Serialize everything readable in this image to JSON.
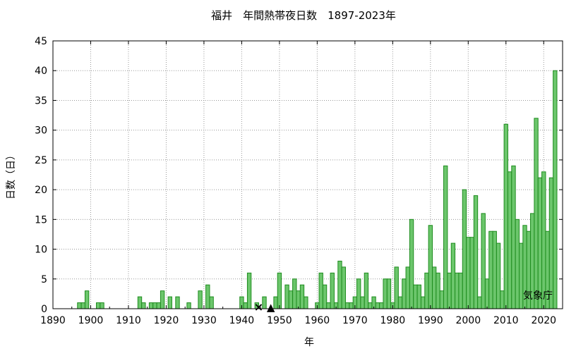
{
  "chart_data": {
    "type": "bar",
    "title": "福井　年間熱帯夜日数　1897-2023年",
    "xlabel": "年",
    "ylabel": "日数（日）",
    "credit": "気象庁",
    "xlim": [
      1890,
      2025
    ],
    "ylim": [
      0,
      45
    ],
    "xticks": [
      1890,
      1900,
      1910,
      1920,
      1930,
      1940,
      1950,
      1960,
      1970,
      1980,
      1990,
      2000,
      2010,
      2020
    ],
    "yticks": [
      0,
      5,
      10,
      15,
      20,
      25,
      30,
      35,
      40,
      45
    ],
    "grid": true,
    "bar_color": "#6cc66c",
    "bar_edge_color": "#1e8c1e",
    "years": [
      1897,
      1898,
      1899,
      1900,
      1901,
      1902,
      1903,
      1904,
      1905,
      1906,
      1907,
      1908,
      1909,
      1910,
      1911,
      1912,
      1913,
      1914,
      1915,
      1916,
      1917,
      1918,
      1919,
      1920,
      1921,
      1922,
      1923,
      1924,
      1925,
      1926,
      1927,
      1928,
      1929,
      1930,
      1931,
      1932,
      1933,
      1934,
      1935,
      1936,
      1937,
      1938,
      1939,
      1940,
      1941,
      1942,
      1943,
      1944,
      1945,
      1946,
      1947,
      1948,
      1949,
      1950,
      1951,
      1952,
      1953,
      1954,
      1955,
      1956,
      1957,
      1958,
      1959,
      1960,
      1961,
      1962,
      1963,
      1964,
      1965,
      1966,
      1967,
      1968,
      1969,
      1970,
      1971,
      1972,
      1973,
      1974,
      1975,
      1976,
      1977,
      1978,
      1979,
      1980,
      1981,
      1982,
      1983,
      1984,
      1985,
      1986,
      1987,
      1988,
      1989,
      1990,
      1991,
      1992,
      1993,
      1994,
      1995,
      1996,
      1997,
      1998,
      1999,
      2000,
      2001,
      2002,
      2003,
      2004,
      2005,
      2006,
      2007,
      2008,
      2009,
      2010,
      2011,
      2012,
      2013,
      2014,
      2015,
      2016,
      2017,
      2018,
      2019,
      2020,
      2021,
      2022,
      2023
    ],
    "values": [
      1,
      1,
      3,
      0,
      0,
      1,
      1,
      0,
      0,
      0,
      0,
      0,
      0,
      0,
      0,
      0,
      2,
      1,
      0,
      1,
      1,
      1,
      3,
      0,
      2,
      0,
      2,
      0,
      0,
      1,
      0,
      0,
      3,
      0,
      4,
      2,
      0,
      0,
      0,
      0,
      0,
      0,
      0,
      2,
      1,
      6,
      0,
      1,
      0,
      2,
      0,
      0,
      2,
      6,
      0,
      4,
      3,
      5,
      3,
      4,
      2,
      0,
      0,
      1,
      6,
      4,
      1,
      6,
      1,
      8,
      7,
      1,
      1,
      2,
      5,
      2,
      6,
      1,
      2,
      1,
      1,
      5,
      5,
      1,
      7,
      2,
      5,
      7,
      15,
      4,
      4,
      2,
      6,
      14,
      7,
      6,
      3,
      24,
      6,
      11,
      6,
      6,
      20,
      12,
      12,
      19,
      2,
      16,
      5,
      13,
      13,
      11,
      3,
      31,
      23,
      24,
      15,
      11,
      14,
      13,
      16,
      32,
      22,
      23,
      13,
      22,
      40
    ],
    "markers": [
      {
        "year": 1944.5,
        "value": 0,
        "symbol": "×",
        "color": "#000000"
      },
      {
        "year": 1947.7,
        "value": 0,
        "symbol": "▲",
        "color": "#e00000"
      }
    ]
  }
}
